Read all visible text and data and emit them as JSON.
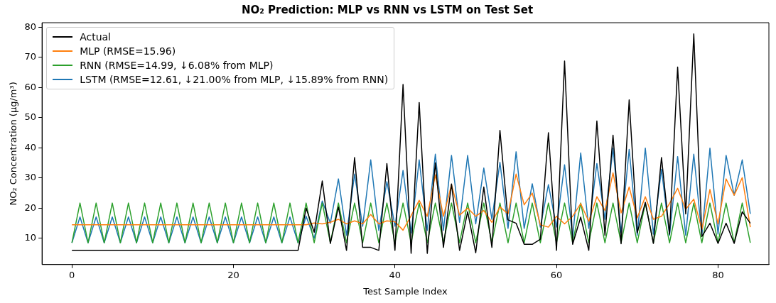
{
  "chart_data": {
    "type": "line",
    "title": "NO₂ Prediction: MLP vs RNN vs LSTM on Test Set",
    "xlabel": "Test Sample Index",
    "ylabel": "NO₂ Concentration (μg/m³)",
    "x": [
      0,
      1,
      2,
      3,
      4,
      5,
      6,
      7,
      8,
      9,
      10,
      11,
      12,
      13,
      14,
      15,
      16,
      17,
      18,
      19,
      20,
      21,
      22,
      23,
      24,
      25,
      26,
      27,
      28,
      29,
      30,
      31,
      32,
      33,
      34,
      35,
      36,
      37,
      38,
      39,
      40,
      41,
      42,
      43,
      44,
      45,
      46,
      47,
      48,
      49,
      50,
      51,
      52,
      53,
      54,
      55,
      56,
      57,
      58,
      59,
      60,
      61,
      62,
      63,
      64,
      65,
      66,
      67,
      68,
      69,
      70,
      71,
      72,
      73,
      74,
      75,
      76,
      77,
      78,
      79,
      80,
      81,
      82,
      83,
      84
    ],
    "series": [
      {
        "name": "Actual",
        "color": "#000000",
        "values": [
          6,
          6,
          6,
          6,
          6,
          6,
          6,
          6,
          6,
          6,
          6,
          6,
          6,
          6,
          6,
          6,
          6,
          6,
          6,
          6,
          6,
          6,
          6,
          6,
          6,
          6,
          6,
          6,
          6,
          20,
          12,
          29,
          8.3,
          20.4,
          6,
          36.8,
          7,
          7,
          6,
          34.8,
          6,
          61,
          5,
          55,
          5,
          35,
          7,
          28,
          6,
          18.8,
          5.2,
          27,
          7,
          45.8,
          16.1,
          15,
          8,
          8,
          9.7,
          45,
          6,
          68.8,
          8,
          17,
          6,
          48.9,
          11,
          44.2,
          8.2,
          55.9,
          11.8,
          21.9,
          8.3,
          36.8,
          11.4,
          66.8,
          18.1,
          77.8,
          10.6,
          15,
          8.3,
          15,
          8.3,
          18.8,
          15
        ]
      },
      {
        "name": "MLP (RMSE=15.96)",
        "color": "#ff7f0e",
        "values": [
          14.5,
          14.5,
          14.5,
          14.5,
          14.5,
          14.5,
          14.5,
          14.5,
          14.5,
          14.5,
          14.5,
          14.5,
          14.5,
          14.5,
          14.5,
          14.5,
          14.5,
          14.5,
          14.5,
          14.5,
          14.5,
          14.5,
          14.5,
          14.5,
          14.5,
          14.5,
          14.5,
          14.5,
          14.5,
          14.5,
          15.1,
          14.8,
          15.3,
          16.3,
          14.8,
          15.8,
          14.8,
          17.9,
          14.8,
          15.8,
          15.5,
          12.7,
          17.5,
          22.6,
          17.3,
          31,
          17.3,
          27.8,
          17.7,
          20,
          17.3,
          19.2,
          15.3,
          20.4,
          18.1,
          31.3,
          21.1,
          25,
          14.5,
          13.7,
          17.3,
          14.8,
          17.3,
          21.5,
          15.6,
          23.8,
          19.2,
          31.7,
          18.4,
          27,
          16.8,
          23.8,
          16.3,
          17.3,
          21.5,
          26.6,
          19.6,
          23,
          12.9,
          26.2,
          14.8,
          29.7,
          24.3,
          30.1,
          13.7
        ]
      },
      {
        "name": "RNN (RMSE=14.99, ↓6.08% from MLP)",
        "color": "#2ca02c",
        "values": [
          8.5,
          21.7,
          8.5,
          21.7,
          8.5,
          21.7,
          8.5,
          21.7,
          8.5,
          21.7,
          8.5,
          21.7,
          8.5,
          21.7,
          8.5,
          21.7,
          8.5,
          21.7,
          8.5,
          21.7,
          8.5,
          21.7,
          8.5,
          21.7,
          8.5,
          21.7,
          8.5,
          21.7,
          8.5,
          21.7,
          8.5,
          21.7,
          8.5,
          21.7,
          8.5,
          21.7,
          8.5,
          21.7,
          8.5,
          21.7,
          8.5,
          21.7,
          8.5,
          21.7,
          8.5,
          21.7,
          8.5,
          21.7,
          8.5,
          21.7,
          8.5,
          21.7,
          8.5,
          21.7,
          8.5,
          21.7,
          8.5,
          21.7,
          8.5,
          21.7,
          8.5,
          21.7,
          8.5,
          21.7,
          8.5,
          21.7,
          8.5,
          21.7,
          8.5,
          21.7,
          8.5,
          21.7,
          8.5,
          21.7,
          8.5,
          21.7,
          8.5,
          21.7,
          8.5,
          21.7,
          8.5,
          21.7,
          8.5,
          21.7,
          8.5
        ]
      },
      {
        "name": "LSTM (RMSE=12.61, ↓21.00% from MLP, ↓15.89% from RNN)",
        "color": "#1f77b4",
        "values": [
          8.5,
          17.1,
          8.5,
          17.1,
          8.5,
          17.1,
          8.5,
          17.1,
          8.5,
          17.1,
          8.5,
          17.1,
          8.5,
          17.1,
          8.5,
          17.1,
          8.5,
          17.1,
          8.5,
          17.1,
          8.5,
          17.1,
          8.5,
          17.1,
          8.5,
          17.1,
          8.5,
          17.1,
          8.5,
          17.3,
          10,
          22.4,
          15,
          29.7,
          11,
          31.3,
          14,
          36,
          12.6,
          28.8,
          14,
          32.5,
          11.8,
          36,
          12.6,
          37.9,
          12.6,
          37.5,
          15.3,
          37.5,
          14.8,
          33.3,
          16.3,
          35.2,
          13.3,
          38.7,
          13.3,
          28.1,
          13.7,
          27.8,
          13.7,
          34.4,
          10.3,
          38.3,
          13.3,
          34.8,
          16.3,
          39.9,
          11.8,
          39.5,
          11,
          39.9,
          11.4,
          32.9,
          11,
          37.1,
          11,
          37.9,
          11,
          39.9,
          11.4,
          37.5,
          24.3,
          36,
          18.1
        ]
      }
    ],
    "xlim": [
      -3.7,
      86.3
    ],
    "ylim": [
      1.3,
      81.5
    ],
    "xticks": [
      0,
      20,
      40,
      60,
      80
    ],
    "yticks": [
      10,
      20,
      30,
      40,
      50,
      60,
      70,
      80
    ],
    "legend": "top left",
    "grid": false,
    "marker": "none",
    "line_style": "solid"
  }
}
